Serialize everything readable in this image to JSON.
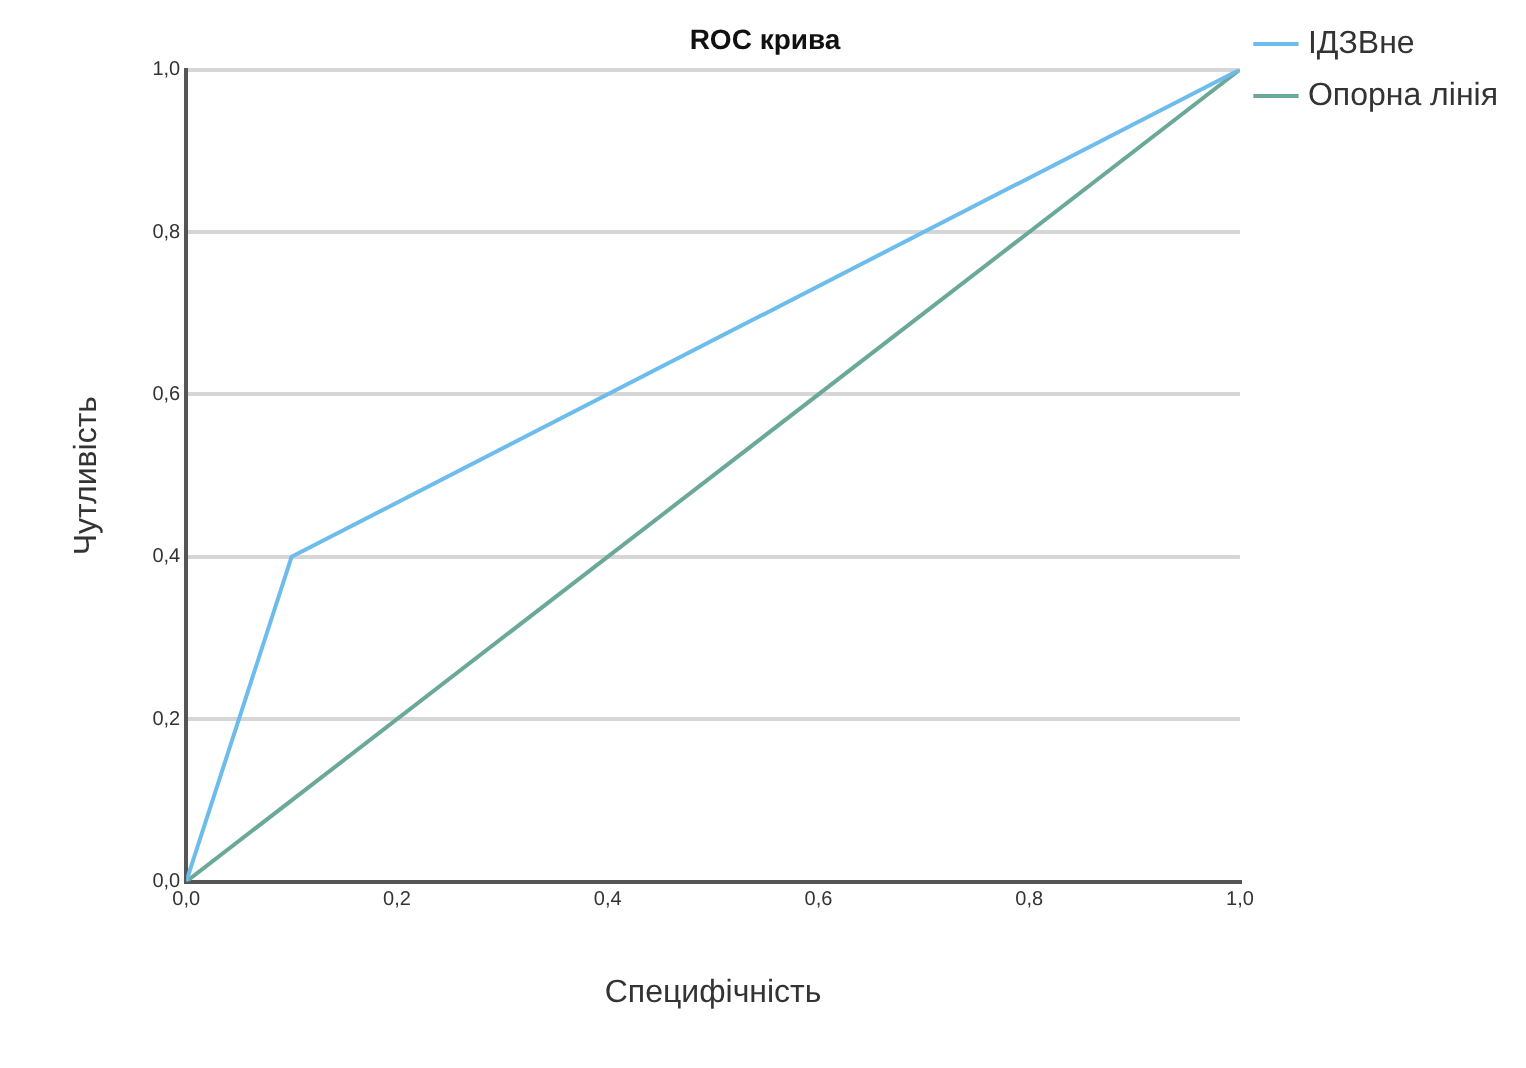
{
  "chart_data": {
    "type": "line",
    "title": "ROC крива",
    "xlabel": "Специфічність",
    "ylabel": "Чутливість",
    "xlim": [
      0,
      1
    ],
    "ylim": [
      0,
      1
    ],
    "xticks": [
      {
        "value": 0,
        "label": "0,0"
      },
      {
        "value": 0.2,
        "label": "0,2"
      },
      {
        "value": 0.4,
        "label": "0,4"
      },
      {
        "value": 0.6,
        "label": "0,6"
      },
      {
        "value": 0.8,
        "label": "0,8"
      },
      {
        "value": 1,
        "label": "1,0"
      }
    ],
    "yticks": [
      {
        "value": 0,
        "label": "0,0"
      },
      {
        "value": 0.2,
        "label": "0,2"
      },
      {
        "value": 0.4,
        "label": "0,4"
      },
      {
        "value": 0.6,
        "label": "0,6"
      },
      {
        "value": 0.8,
        "label": "0,8"
      },
      {
        "value": 1,
        "label": "1,0"
      }
    ],
    "series": [
      {
        "name": "ІДЗВне",
        "color": "#6cbcec",
        "x": [
          0,
          0.1,
          1
        ],
        "values": [
          0,
          0.4,
          1
        ]
      },
      {
        "name": "Опорна лінія",
        "color": "#6aa89a",
        "x": [
          0,
          1
        ],
        "values": [
          0,
          1
        ]
      }
    ],
    "grid": "y",
    "legend": "right",
    "marker": "none",
    "line_style": "solid"
  }
}
